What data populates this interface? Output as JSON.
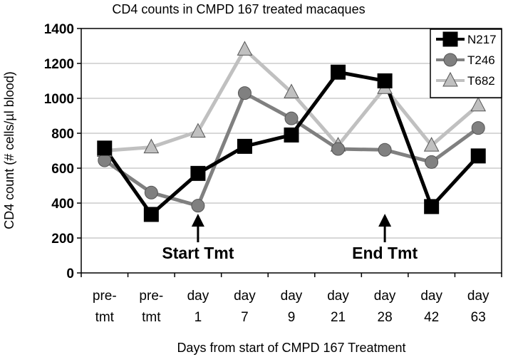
{
  "chart_data": {
    "type": "line",
    "title": "CD4 counts in CMPD 167 treated macaques",
    "xlabel": "Days from start of CMPD 167 Treatment",
    "ylabel": "CD4 count (# cells/µl blood)",
    "ylim": [
      0,
      1400
    ],
    "yticks": [
      0,
      200,
      400,
      600,
      800,
      1000,
      1200,
      1400
    ],
    "grid": "horizontal",
    "legend_position": "top-right",
    "categories": [
      [
        "pre-",
        "tmt"
      ],
      [
        "pre-",
        "tmt"
      ],
      [
        "day",
        "1"
      ],
      [
        "day",
        "7"
      ],
      [
        "day",
        "9"
      ],
      [
        "day",
        "21"
      ],
      [
        "day",
        "28"
      ],
      [
        "day",
        "42"
      ],
      [
        "day",
        "63"
      ]
    ],
    "series": [
      {
        "name": "N217",
        "color": "#000000",
        "marker": "square",
        "values": [
          715,
          335,
          570,
          725,
          790,
          1150,
          1100,
          380,
          670
        ]
      },
      {
        "name": "T246",
        "color": "#808080",
        "marker": "circle",
        "values": [
          645,
          460,
          385,
          1030,
          885,
          710,
          705,
          635,
          830
        ]
      },
      {
        "name": "T682",
        "color": "#c0c0c0",
        "marker": "triangle",
        "values": [
          700,
          720,
          810,
          1280,
          1035,
          730,
          1060,
          730,
          960
        ]
      }
    ],
    "annotations": [
      {
        "text": "Start Tmt",
        "category_index": 2
      },
      {
        "text": "End Tmt",
        "category_index": 6
      }
    ]
  }
}
